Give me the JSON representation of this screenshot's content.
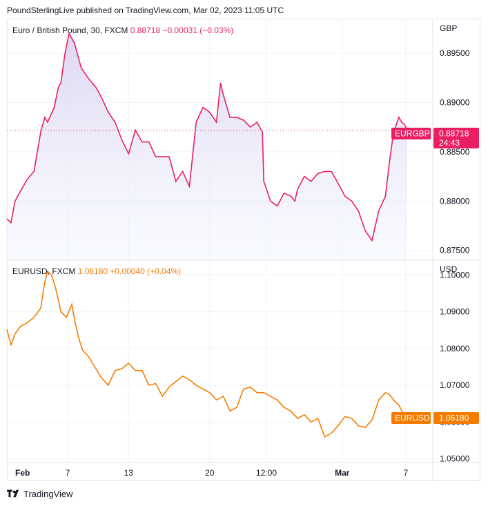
{
  "header": {
    "attribution": "PoundSterlingLive published on TradingView.com, Mar 02, 2023 11:05 UTC"
  },
  "footer": {
    "brand": "TradingView",
    "logo_icon": "tradingview-logo-icon"
  },
  "colors": {
    "eurgbp": "#e91e63",
    "eurgbp_fill_top": "#d8cff0",
    "eurusd": "#f57c00",
    "grid": "#f0f3fa",
    "border": "#e0e3eb",
    "text": "#131722"
  },
  "chart_data": [
    {
      "type": "area",
      "symbol_title": "Euro / British Pound, 30, FXCM",
      "last_value": "0.88718",
      "change": "−0.00031 (−0.03%)",
      "currency": "GBP",
      "price_tag": "0.88718",
      "time_tag": "24:43",
      "series_tag": "EURGBP",
      "ylim": [
        0.874,
        0.8985
      ],
      "yticks": [
        0.875,
        0.88,
        0.885,
        0.89,
        0.895
      ],
      "ytick_labels": [
        "0.87500",
        "0.88000",
        "0.88500",
        "0.89000",
        "0.89500"
      ],
      "last": 0.88718,
      "x": [
        0,
        0.3,
        0.6,
        1.0,
        1.5,
        2.0,
        2.5,
        2.8,
        3.0,
        3.5,
        3.8,
        4.0,
        4.3,
        4.6,
        5.0,
        5.5,
        6.0,
        6.3,
        6.6,
        7.0,
        7.5,
        8.0,
        8.5,
        9.0,
        9.5,
        10.0,
        10.5,
        11.0,
        11.5,
        12.0,
        12.5,
        13.0,
        13.5,
        14.0,
        14.5,
        15.0,
        15.5,
        15.8,
        16.0,
        16.5,
        17.0,
        17.5,
        18.0,
        18.5,
        18.9,
        19.0,
        19.5,
        20.0,
        20.5,
        21.0,
        21.3,
        21.5,
        22.0,
        22.5,
        23.0,
        23.5,
        24.0,
        24.5,
        25.0,
        25.5,
        26.0,
        26.5,
        27.0,
        27.5,
        28.0,
        28.3,
        28.6,
        29.0,
        29.2,
        29.4,
        29.6
      ],
      "values": [
        0.8782,
        0.8778,
        0.88,
        0.881,
        0.8822,
        0.883,
        0.887,
        0.8885,
        0.888,
        0.8895,
        0.8915,
        0.892,
        0.895,
        0.897,
        0.896,
        0.8935,
        0.8925,
        0.892,
        0.8915,
        0.8905,
        0.889,
        0.888,
        0.8862,
        0.8848,
        0.8872,
        0.886,
        0.886,
        0.8845,
        0.8845,
        0.8845,
        0.882,
        0.883,
        0.8815,
        0.888,
        0.8895,
        0.889,
        0.888,
        0.892,
        0.8908,
        0.8885,
        0.8885,
        0.8882,
        0.8875,
        0.888,
        0.887,
        0.882,
        0.88,
        0.8795,
        0.8808,
        0.8805,
        0.88,
        0.8812,
        0.8825,
        0.882,
        0.8828,
        0.883,
        0.883,
        0.8818,
        0.8805,
        0.88,
        0.879,
        0.877,
        0.876,
        0.879,
        0.8805,
        0.884,
        0.887,
        0.8885,
        0.888,
        0.8878,
        0.8872
      ]
    },
    {
      "type": "line",
      "symbol_title": "EURUSD, FXCM",
      "last_value": "1.06180",
      "change": "+0.00040 (+0.04%)",
      "currency": "USD",
      "price_tag": "1.06180",
      "series_tag": "EURUSD",
      "ylim": [
        1.049,
        1.104
      ],
      "yticks": [
        1.05,
        1.06,
        1.07,
        1.08,
        1.09,
        1.1
      ],
      "ytick_labels": [
        "1.05000",
        "1.06000",
        "1.07000",
        "1.08000",
        "1.09000",
        "1.10000"
      ],
      "last": 1.0618,
      "x": [
        0,
        0.3,
        0.6,
        1.0,
        1.5,
        2.0,
        2.5,
        2.8,
        3.0,
        3.3,
        3.6,
        4.0,
        4.4,
        4.8,
        5.0,
        5.3,
        5.6,
        6.0,
        6.5,
        7.0,
        7.5,
        8.0,
        8.5,
        9.0,
        9.5,
        10.0,
        10.5,
        11.0,
        11.5,
        12.0,
        12.5,
        13.0,
        13.5,
        14.0,
        14.5,
        15.0,
        15.5,
        16.0,
        16.5,
        17.0,
        17.5,
        18.0,
        18.5,
        19.0,
        19.5,
        20.0,
        20.5,
        21.0,
        21.5,
        22.0,
        22.5,
        23.0,
        23.5,
        24.0,
        24.5,
        25.0,
        25.5,
        26.0,
        26.5,
        27.0,
        27.5,
        28.0,
        28.3,
        28.6,
        29.0,
        29.3,
        29.6
      ],
      "values": [
        1.0852,
        1.081,
        1.084,
        1.086,
        1.087,
        1.0885,
        1.091,
        1.098,
        1.101,
        1.1,
        1.0965,
        1.09,
        1.0885,
        1.092,
        1.088,
        1.083,
        1.0795,
        1.078,
        1.075,
        1.072,
        1.07,
        1.074,
        1.0745,
        1.076,
        1.074,
        1.074,
        1.07,
        1.0705,
        1.067,
        1.0695,
        1.071,
        1.0725,
        1.0715,
        1.07,
        1.069,
        1.068,
        1.066,
        1.067,
        1.063,
        1.064,
        1.069,
        1.0695,
        1.068,
        1.068,
        1.067,
        1.066,
        1.064,
        1.063,
        1.061,
        1.062,
        1.06,
        1.061,
        1.056,
        1.057,
        1.059,
        1.0615,
        1.061,
        1.059,
        1.0585,
        1.0605,
        1.066,
        1.068,
        1.0675,
        1.066,
        1.0645,
        1.0625,
        1.0618
      ]
    }
  ],
  "x_axis": {
    "min": 0,
    "max": 31.5,
    "ticks": [
      0,
      4.5,
      9.0,
      15.0,
      19.2,
      24.8,
      29.5
    ],
    "labels": [
      "Feb",
      "7",
      "13",
      "20",
      "12:00",
      "Mar",
      "7"
    ],
    "bold": [
      true,
      false,
      false,
      false,
      false,
      true,
      false
    ]
  }
}
